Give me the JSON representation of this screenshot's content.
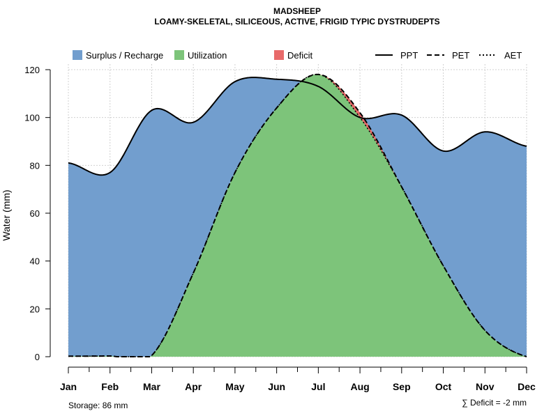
{
  "chart_data": {
    "type": "area",
    "title": "MADSHEEP",
    "subtitle": "LOAMY-SKELETAL, SILICEOUS, ACTIVE, FRIGID TYPIC DYSTRUDEPTS",
    "ylabel": "Water (mm)",
    "xlabel": "",
    "ylim": [
      0,
      120
    ],
    "yticks": [
      0,
      20,
      40,
      60,
      80,
      100,
      120
    ],
    "categories": [
      "Jan",
      "Feb",
      "Mar",
      "Apr",
      "May",
      "Jun",
      "Jul",
      "Aug",
      "Sep",
      "Oct",
      "Nov",
      "Dec"
    ],
    "series": [
      {
        "name": "PPT",
        "style": "solid",
        "values": [
          81,
          77,
          103,
          98,
          115,
          116,
          113,
          100,
          101,
          86,
          94,
          88
        ]
      },
      {
        "name": "PET",
        "style": "dashed",
        "values": [
          0.2,
          0.3,
          0.5,
          35,
          77,
          104,
          118,
          102,
          71,
          38,
          11,
          0
        ]
      },
      {
        "name": "AET",
        "style": "dotted",
        "values": [
          0.2,
          0.3,
          0.5,
          35,
          77,
          104,
          118,
          100,
          71,
          38,
          11,
          0
        ]
      }
    ],
    "areas": [
      {
        "name": "Surplus / Recharge",
        "color": "#729ECE"
      },
      {
        "name": "Utilization",
        "color": "#7DC47A"
      },
      {
        "name": "Deficit",
        "color": "#E86A6A"
      }
    ],
    "legend": {
      "areas": [
        "Surplus / Recharge",
        "Utilization",
        "Deficit"
      ],
      "lines": [
        "PPT",
        "PET",
        "AET"
      ],
      "placement": "top"
    },
    "grid": true,
    "annotations": {
      "storage": "Storage: 86 mm",
      "deficit": "∑ Deficit = -2 mm"
    }
  }
}
